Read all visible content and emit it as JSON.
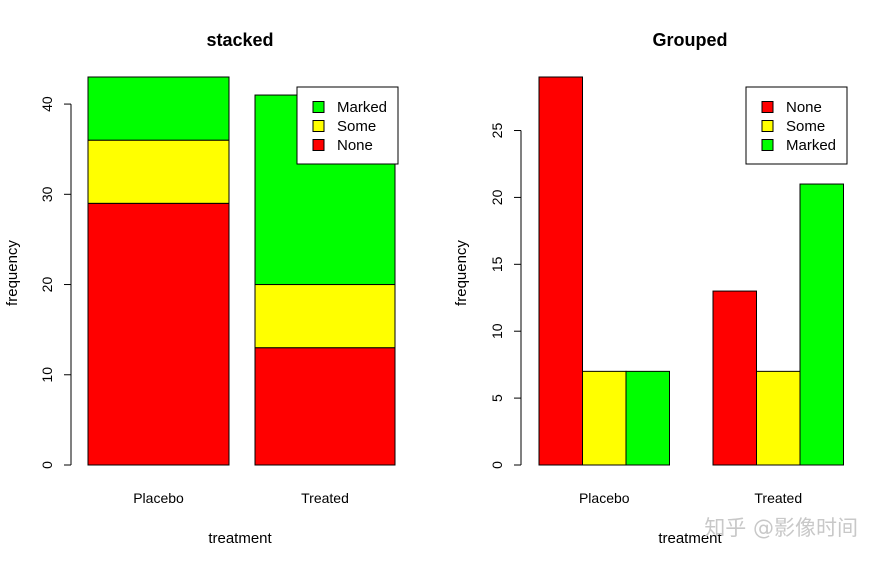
{
  "chart_data": [
    {
      "type": "bar",
      "mode": "stacked",
      "title": "stacked",
      "xlabel": "treatment",
      "ylabel": "frequency",
      "categories": [
        "Placebo",
        "Treated"
      ],
      "series": [
        {
          "name": "None",
          "color": "#ff0000",
          "values": [
            29,
            13
          ]
        },
        {
          "name": "Some",
          "color": "#ffff00",
          "values": [
            7,
            7
          ]
        },
        {
          "name": "Marked",
          "color": "#00ff00",
          "values": [
            7,
            21
          ]
        }
      ],
      "legend_order": [
        "Marked",
        "Some",
        "None"
      ],
      "legend_position": "top-right",
      "ylim": [
        0,
        43
      ],
      "yticks": [
        0,
        10,
        20,
        30,
        40
      ]
    },
    {
      "type": "bar",
      "mode": "grouped",
      "title": "Grouped",
      "xlabel": "treatment",
      "ylabel": "frequency",
      "categories": [
        "Placebo",
        "Treated"
      ],
      "series": [
        {
          "name": "None",
          "color": "#ff0000",
          "values": [
            29,
            13
          ]
        },
        {
          "name": "Some",
          "color": "#ffff00",
          "values": [
            7,
            7
          ]
        },
        {
          "name": "Marked",
          "color": "#00ff00",
          "values": [
            7,
            21
          ]
        }
      ],
      "legend_order": [
        "None",
        "Some",
        "Marked"
      ],
      "legend_position": "top-right",
      "ylim": [
        0,
        29
      ],
      "yticks": [
        0,
        5,
        10,
        15,
        20,
        25
      ]
    }
  ],
  "watermark": "知乎 @影像时间"
}
